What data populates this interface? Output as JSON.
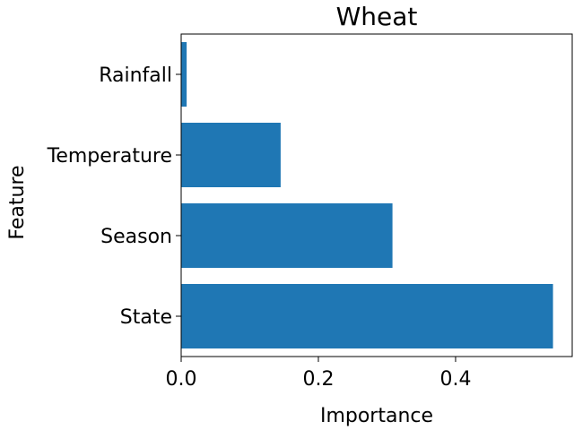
{
  "chart_data": {
    "type": "bar",
    "orientation": "horizontal",
    "title": "Wheat",
    "xlabel": "Importance",
    "ylabel": "Feature",
    "categories": [
      "State",
      "Season",
      "Temperature",
      "Rainfall"
    ],
    "values": [
      0.542,
      0.308,
      0.145,
      0.008
    ],
    "xlim": [
      0,
      0.57
    ],
    "xticks": [
      0.0,
      0.2,
      0.4
    ],
    "xtick_labels": [
      "0.0",
      "0.2",
      "0.4"
    ],
    "bar_color": "#1f77b4",
    "grid": false,
    "legend": "none"
  }
}
